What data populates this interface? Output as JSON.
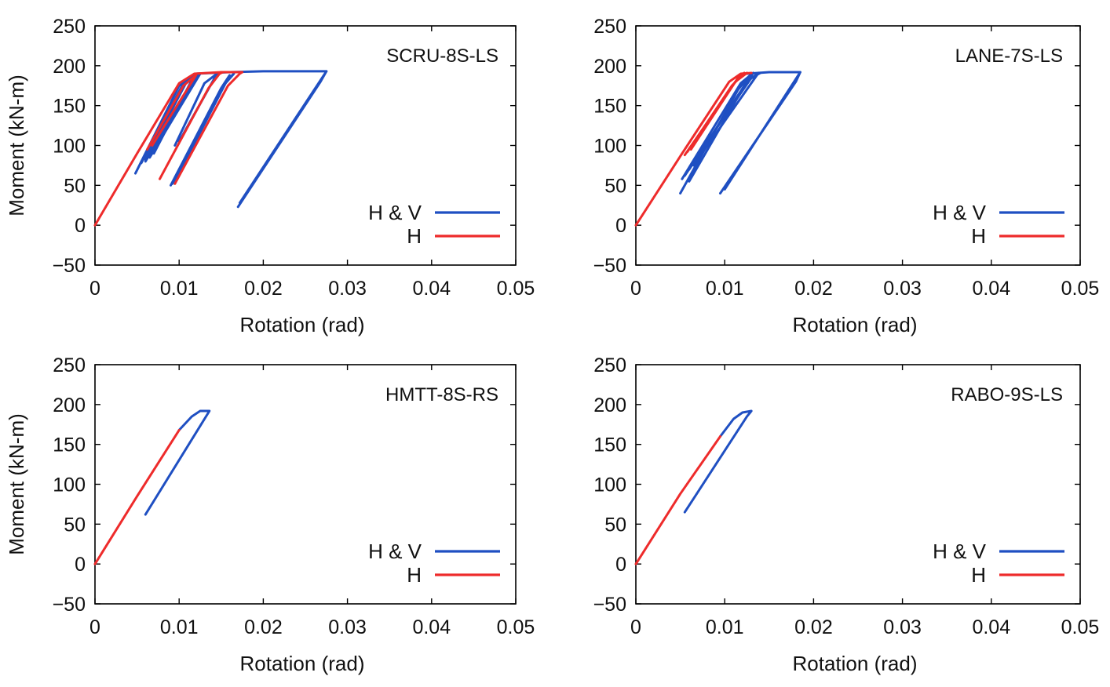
{
  "colors": {
    "blue": "#1f4fc2",
    "red": "#ee2b2b"
  },
  "chart_data": [
    {
      "type": "line",
      "title": "SCRU-8S-LS",
      "xlabel": "Rotation (rad)",
      "ylabel": "Moment (kN-m)",
      "xlim": [
        0,
        0.05
      ],
      "ylim": [
        -50,
        250
      ],
      "xticks": [
        "0",
        "0.01",
        "0.02",
        "0.03",
        "0.04",
        "0.05"
      ],
      "yticks": [
        "250",
        "200",
        "150",
        "100",
        "50",
        "0",
        "−50"
      ],
      "legend_position": "lower-right",
      "series": [
        {
          "name": "H & V",
          "color": "#1f4fc2",
          "paths": [
            [
              [
                0.0048,
                65
              ],
              [
                0.01,
                175
              ],
              [
                0.0118,
                188
              ],
              [
                0.007,
                90
              ]
            ],
            [
              [
                0.0055,
                78
              ],
              [
                0.0105,
                178
              ],
              [
                0.0122,
                190
              ],
              [
                0.006,
                80
              ]
            ],
            [
              [
                0.006,
                82
              ],
              [
                0.011,
                182
              ],
              [
                0.0125,
                190
              ],
              [
                0.0065,
                85
              ]
            ],
            [
              [
                0.0095,
                100
              ],
              [
                0.013,
                178
              ],
              [
                0.0145,
                190
              ],
              [
                0.01,
                105
              ]
            ],
            [
              [
                0.009,
                50
              ],
              [
                0.015,
                172
              ],
              [
                0.016,
                188
              ],
              [
                0.0095,
                55
              ]
            ],
            [
              [
                0.0092,
                52
              ],
              [
                0.0155,
                178
              ],
              [
                0.0165,
                190
              ],
              [
                0.016,
                185
              ]
            ],
            [
              [
                0.017,
                23
              ],
              [
                0.0268,
                180
              ],
              [
                0.0275,
                193
              ],
              [
                0.0172,
                28
              ]
            ],
            [
              [
                0.012,
                190
              ],
              [
                0.016,
                192
              ],
              [
                0.02,
                193
              ],
              [
                0.025,
                193
              ],
              [
                0.0275,
                193
              ]
            ]
          ]
        },
        {
          "name": "H",
          "color": "#ee2b2b",
          "paths": [
            [
              [
                0,
                0
              ],
              [
                0.005,
                90
              ],
              [
                0.01,
                178
              ],
              [
                0.0118,
                190
              ],
              [
                0.015,
                192
              ],
              [
                0.0175,
                192
              ]
            ],
            [
              [
                0.0062,
                95
              ],
              [
                0.0105,
                175
              ],
              [
                0.012,
                188
              ],
              [
                0.0068,
                100
              ]
            ],
            [
              [
                0.0077,
                58
              ],
              [
                0.0135,
                172
              ],
              [
                0.0148,
                190
              ],
              [
                0.0152,
                192
              ]
            ],
            [
              [
                0.0095,
                52
              ],
              [
                0.0158,
                175
              ],
              [
                0.0172,
                190
              ],
              [
                0.0175,
                192
              ]
            ]
          ]
        }
      ]
    },
    {
      "type": "line",
      "title": "LANE-7S-LS",
      "xlabel": "Rotation (rad)",
      "ylabel": "",
      "xlim": [
        0,
        0.05
      ],
      "ylim": [
        -50,
        250
      ],
      "xticks": [
        "0",
        "0.01",
        "0.02",
        "0.03",
        "0.04",
        "0.05"
      ],
      "yticks": [
        "250",
        "200",
        "150",
        "100",
        "50",
        "0",
        "−50"
      ],
      "legend_position": "lower-right",
      "series": [
        {
          "name": "H & V",
          "color": "#1f4fc2",
          "paths": [
            [
              [
                0.005,
                40
              ],
              [
                0.0115,
                170
              ],
              [
                0.013,
                190
              ],
              [
                0.006,
                55
              ]
            ],
            [
              [
                0.0052,
                58
              ],
              [
                0.0118,
                178
              ],
              [
                0.0132,
                191
              ],
              [
                0.0055,
                62
              ]
            ],
            [
              [
                0.006,
                70
              ],
              [
                0.0125,
                180
              ],
              [
                0.0138,
                191
              ],
              [
                0.0065,
                75
              ]
            ],
            [
              [
                0.0065,
                80
              ],
              [
                0.013,
                185
              ],
              [
                0.014,
                191
              ]
            ],
            [
              [
                0.0095,
                40
              ],
              [
                0.018,
                180
              ],
              [
                0.0185,
                192
              ],
              [
                0.01,
                45
              ]
            ],
            [
              [
                0.0125,
                190
              ],
              [
                0.015,
                192
              ],
              [
                0.0185,
                192
              ]
            ]
          ]
        },
        {
          "name": "H",
          "color": "#ee2b2b",
          "paths": [
            [
              [
                0,
                0
              ],
              [
                0.0052,
                90
              ],
              [
                0.0105,
                180
              ],
              [
                0.0118,
                190
              ],
              [
                0.013,
                191
              ]
            ],
            [
              [
                0.0055,
                88
              ],
              [
                0.01,
                160
              ],
              [
                0.0115,
                185
              ],
              [
                0.012,
                190
              ]
            ],
            [
              [
                0.0058,
                92
              ],
              [
                0.0108,
                175
              ],
              [
                0.0122,
                191
              ]
            ],
            [
              [
                0.0062,
                95
              ],
              [
                0.0112,
                180
              ],
              [
                0.0125,
                191
              ]
            ]
          ]
        }
      ]
    },
    {
      "type": "line",
      "title": "HMTT-8S-RS",
      "xlabel": "Rotation (rad)",
      "ylabel": "Moment (kN-m)",
      "xlim": [
        0,
        0.05
      ],
      "ylim": [
        -50,
        250
      ],
      "xticks": [
        "0",
        "0.01",
        "0.02",
        "0.03",
        "0.04",
        "0.05"
      ],
      "yticks": [
        "250",
        "200",
        "150",
        "100",
        "50",
        "0",
        "−50"
      ],
      "legend_position": "lower-right",
      "series": [
        {
          "name": "H & V",
          "color": "#1f4fc2",
          "paths": [
            [
              [
                0.01,
                168
              ],
              [
                0.0115,
                185
              ],
              [
                0.0125,
                192
              ],
              [
                0.0136,
                192
              ],
              [
                0.006,
                62
              ]
            ]
          ]
        },
        {
          "name": "H",
          "color": "#ee2b2b",
          "paths": [
            [
              [
                0,
                0
              ],
              [
                0.005,
                85
              ],
              [
                0.01,
                168
              ]
            ]
          ]
        }
      ]
    },
    {
      "type": "line",
      "title": "RABO-9S-LS",
      "xlabel": "Rotation (rad)",
      "ylabel": "",
      "xlim": [
        0,
        0.05
      ],
      "ylim": [
        -50,
        250
      ],
      "xticks": [
        "0",
        "0.01",
        "0.02",
        "0.03",
        "0.04",
        "0.05"
      ],
      "yticks": [
        "250",
        "200",
        "150",
        "100",
        "50",
        "0",
        "−50"
      ],
      "legend_position": "lower-right",
      "series": [
        {
          "name": "H & V",
          "color": "#1f4fc2",
          "paths": [
            [
              [
                0.0095,
                160
              ],
              [
                0.011,
                182
              ],
              [
                0.012,
                190
              ],
              [
                0.013,
                192
              ],
              [
                0.0125,
                185
              ],
              [
                0.0055,
                65
              ]
            ]
          ]
        },
        {
          "name": "H",
          "color": "#ee2b2b",
          "paths": [
            [
              [
                0,
                0
              ],
              [
                0.005,
                88
              ],
              [
                0.0095,
                160
              ]
            ]
          ]
        }
      ]
    }
  ]
}
